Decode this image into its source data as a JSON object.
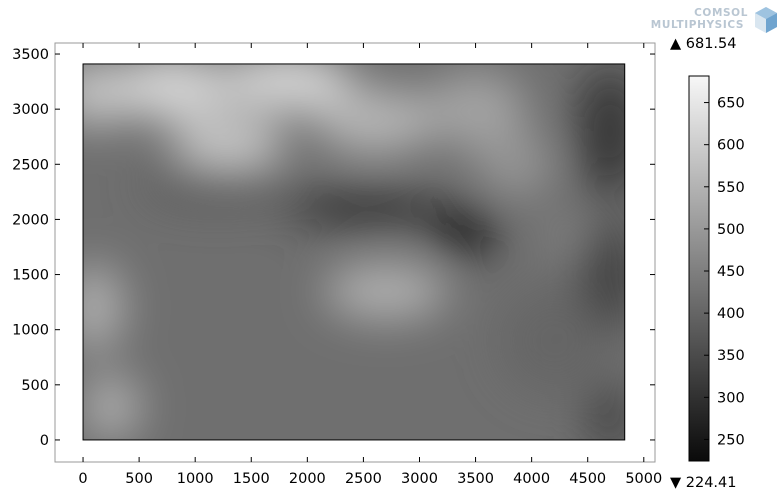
{
  "logo": {
    "line1": "COMSOL",
    "line2": "MULTIPHYSICS"
  },
  "chart_data": {
    "type": "heatmap",
    "title": "",
    "xlabel": "",
    "ylabel": "",
    "xlim": [
      -250,
      5100
    ],
    "ylim": [
      -200,
      3600
    ],
    "domain": {
      "x": [
        0,
        4830
      ],
      "y": [
        0,
        3410
      ]
    },
    "x_ticks": [
      0,
      500,
      1000,
      1500,
      2000,
      2500,
      3000,
      3500,
      4000,
      4500,
      5000
    ],
    "y_ticks": [
      0,
      500,
      1000,
      1500,
      2000,
      2500,
      3000,
      3500
    ],
    "colormap": "grayscale",
    "colorbar": {
      "min": 224.41,
      "max": 681.54,
      "max_label": "▲ 681.54",
      "min_label": "▼ 224.41",
      "ticks": [
        250,
        300,
        350,
        400,
        450,
        500,
        550,
        600,
        650
      ]
    },
    "features": [
      {
        "x": 100,
        "y": 3150,
        "value": 600,
        "sx": 350,
        "sy": 300
      },
      {
        "x": 800,
        "y": 3200,
        "value": 640,
        "sx": 500,
        "sy": 300
      },
      {
        "x": 1800,
        "y": 3250,
        "value": 650,
        "sx": 600,
        "sy": 250
      },
      {
        "x": 1300,
        "y": 2700,
        "value": 610,
        "sx": 500,
        "sy": 250
      },
      {
        "x": 2600,
        "y": 2900,
        "value": 570,
        "sx": 550,
        "sy": 300
      },
      {
        "x": 3500,
        "y": 3000,
        "value": 530,
        "sx": 450,
        "sy": 350
      },
      {
        "x": 3850,
        "y": 2500,
        "value": 500,
        "sx": 350,
        "sy": 300
      },
      {
        "x": 100,
        "y": 1200,
        "value": 560,
        "sx": 250,
        "sy": 400
      },
      {
        "x": 250,
        "y": 300,
        "value": 560,
        "sx": 250,
        "sy": 300
      },
      {
        "x": 2700,
        "y": 1350,
        "value": 560,
        "sx": 550,
        "sy": 250
      },
      {
        "x": 4300,
        "y": 1850,
        "value": 470,
        "sx": 200,
        "sy": 150
      },
      {
        "x": 4200,
        "y": 900,
        "value": 400,
        "sx": 500,
        "sy": 500
      },
      {
        "x": 1200,
        "y": 2300,
        "value": 380,
        "sx": 700,
        "sy": 180
      },
      {
        "x": 2500,
        "y": 2100,
        "value": 300,
        "sx": 700,
        "sy": 180
      },
      {
        "x": 3400,
        "y": 1900,
        "value": 250,
        "sx": 300,
        "sy": 250
      },
      {
        "x": 4700,
        "y": 2800,
        "value": 300,
        "sx": 300,
        "sy": 600
      },
      {
        "x": 4700,
        "y": 1500,
        "value": 320,
        "sx": 250,
        "sy": 500
      },
      {
        "x": 4700,
        "y": 200,
        "value": 320,
        "sx": 200,
        "sy": 300
      }
    ],
    "base_value": 420
  }
}
